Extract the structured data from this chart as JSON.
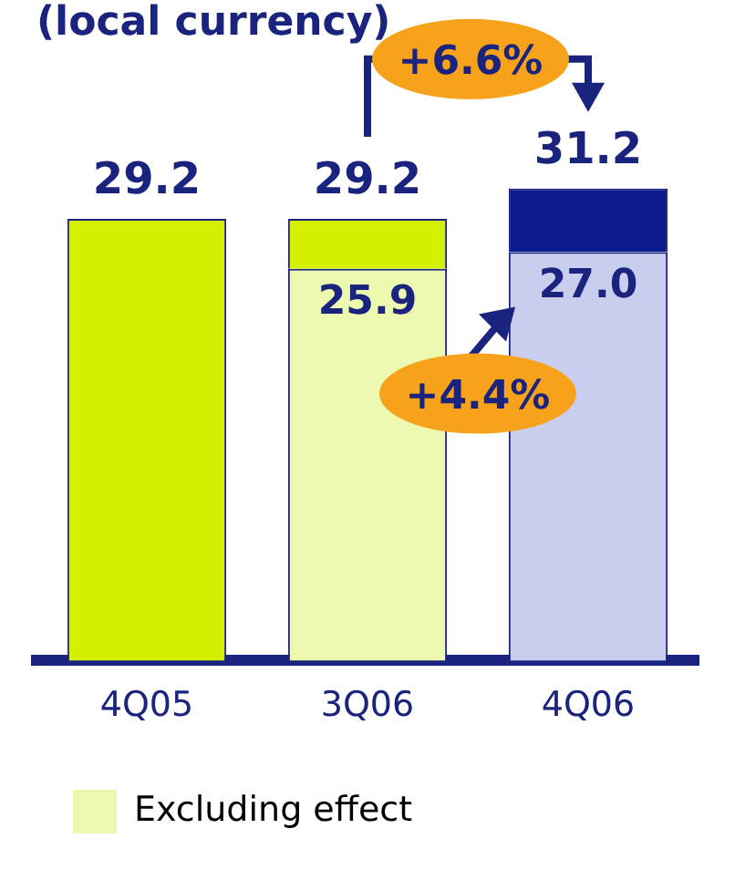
{
  "chart_data": {
    "type": "bar",
    "title": "(local currency)",
    "categories": [
      "4Q05",
      "3Q06",
      "4Q06"
    ],
    "stacked": true,
    "legend": "bottom",
    "tick_labels": "x",
    "grid": false,
    "series": [
      {
        "name": "Excluding effect",
        "colors": [
          null,
          "#eef9b0",
          "#c9cdee"
        ],
        "values": [
          null,
          25.9,
          27.0
        ],
        "value_labels": [
          null,
          "25.9",
          "27.0"
        ]
      },
      {
        "colors": [
          "#d4f000",
          "#d4f000",
          "#0a1a8c"
        ],
        "values": [
          29.2,
          3.3,
          4.2
        ]
      }
    ],
    "totals": [
      "29.2",
      "29.2",
      "31.2"
    ],
    "annotations": [
      "+6.6%",
      "+4.4%"
    ]
  }
}
